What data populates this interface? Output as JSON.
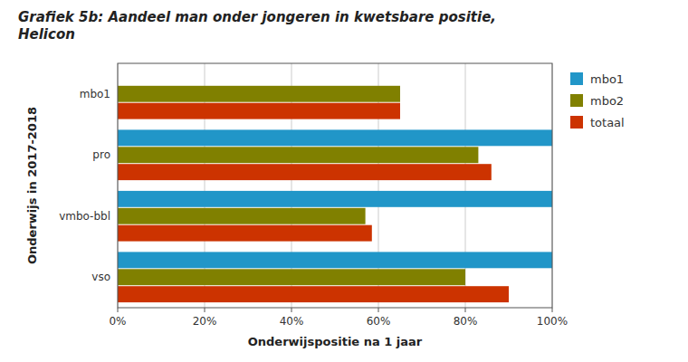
{
  "chart_data": {
    "type": "bar",
    "orientation": "horizontal",
    "title": "Grafiek 5b: Aandeel man onder jongeren in kwetsbare positie,\nHelicon",
    "categories": [
      "vso",
      "vmbo-bbl",
      "pro",
      "mbo1"
    ],
    "series": [
      {
        "name": "mbo1",
        "color": "#2196C8",
        "values": [
          1.0,
          1.0,
          1.0,
          null
        ]
      },
      {
        "name": "mbo2",
        "color": "#808000",
        "values": [
          0.8,
          0.57,
          0.83,
          0.65
        ]
      },
      {
        "name": "totaal",
        "color": "#CC3300",
        "values": [
          0.9,
          0.585,
          0.86,
          0.65
        ]
      }
    ],
    "xlabel": "Onderwijspositie na 1 jaar",
    "ylabel": "Onderwijs in 2017-2018",
    "xlim": [
      0,
      1.0
    ],
    "xticks": [
      {
        "value": 0,
        "label": "0%"
      },
      {
        "value": 0.2,
        "label": "20%"
      },
      {
        "value": 0.4,
        "label": "40%"
      },
      {
        "value": 0.6,
        "label": "60%"
      },
      {
        "value": 0.8,
        "label": "80%"
      },
      {
        "value": 1.0,
        "label": "100%"
      }
    ],
    "grid": true,
    "legend": "right"
  }
}
